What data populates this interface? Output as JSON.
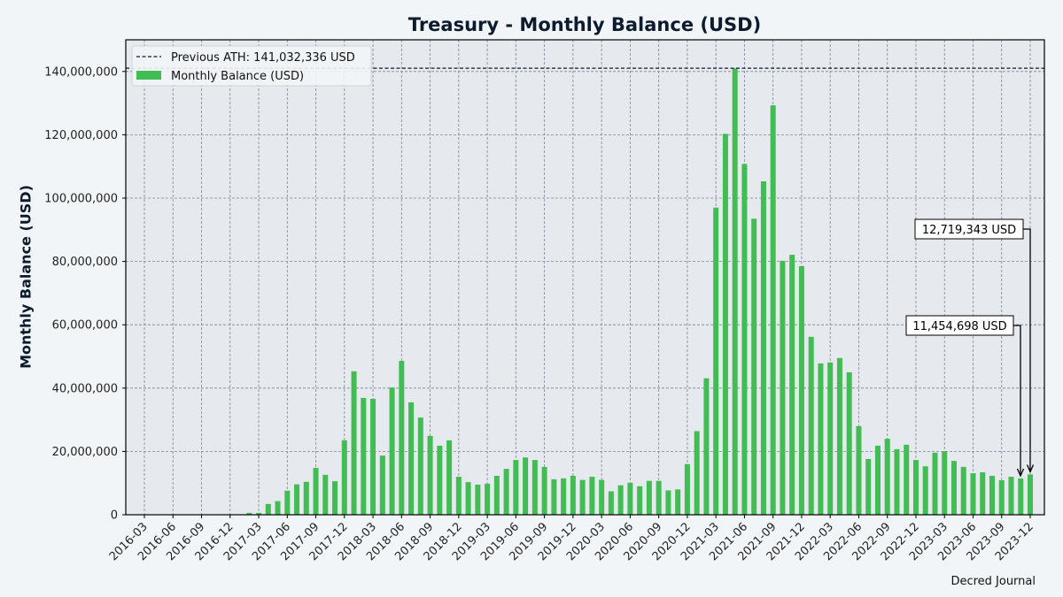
{
  "title": "Treasury - Monthly Balance (USD)",
  "footer": "Decred Journal",
  "legend": {
    "ath_label": "Previous ATH: 141,032,336 USD",
    "bar_label": "Monthly Balance (USD)"
  },
  "annotations": [
    {
      "label": "12,719,343 USD",
      "month": "2023-12",
      "value": 12719343
    },
    {
      "label": "11,454,698 USD",
      "month": "2023-11",
      "value": 11454698
    }
  ],
  "colors": {
    "bar": "#42bd53",
    "ath_line": "#0d1b2e",
    "plot_bg": "#e6e9ed",
    "page_bg": "#f2f5f7",
    "grid": "#7a8594",
    "text": "#0d1b2e"
  },
  "chart_data": {
    "type": "bar",
    "title": "Treasury - Monthly Balance (USD)",
    "xlabel": "",
    "ylabel": "Monthly Balance (USD)",
    "ylim": [
      0,
      150000000
    ],
    "yticks": [
      0,
      20000000,
      40000000,
      60000000,
      80000000,
      100000000,
      120000000,
      140000000
    ],
    "ytick_labels": [
      "0",
      "20,000,000",
      "40,000,000",
      "60,000,000",
      "80,000,000",
      "100,000,000",
      "120,000,000",
      "140,000,000"
    ],
    "xtick_labels": [
      "2016-03",
      "2016-06",
      "2016-09",
      "2016-12",
      "2017-03",
      "2017-06",
      "2017-09",
      "2017-12",
      "2018-03",
      "2018-06",
      "2018-09",
      "2018-12",
      "2019-03",
      "2019-06",
      "2019-09",
      "2019-12",
      "2020-03",
      "2020-06",
      "2020-09",
      "2020-12",
      "2021-03",
      "2021-06",
      "2021-09",
      "2021-12",
      "2022-03",
      "2022-06",
      "2022-09",
      "2022-12",
      "2023-03",
      "2023-06",
      "2023-09",
      "2023-12"
    ],
    "grid": true,
    "legend_position": "upper left",
    "reference_line": {
      "label": "Previous ATH: 141,032,336 USD",
      "value": 141032336,
      "style": "dashed"
    },
    "categories": [
      "2016-03",
      "2016-04",
      "2016-05",
      "2016-06",
      "2016-07",
      "2016-08",
      "2016-09",
      "2016-10",
      "2016-11",
      "2016-12",
      "2017-01",
      "2017-02",
      "2017-03",
      "2017-04",
      "2017-05",
      "2017-06",
      "2017-07",
      "2017-08",
      "2017-09",
      "2017-10",
      "2017-11",
      "2017-12",
      "2018-01",
      "2018-02",
      "2018-03",
      "2018-04",
      "2018-05",
      "2018-06",
      "2018-07",
      "2018-08",
      "2018-09",
      "2018-10",
      "2018-11",
      "2018-12",
      "2019-01",
      "2019-02",
      "2019-03",
      "2019-04",
      "2019-05",
      "2019-06",
      "2019-07",
      "2019-08",
      "2019-09",
      "2019-10",
      "2019-11",
      "2019-12",
      "2020-01",
      "2020-02",
      "2020-03",
      "2020-04",
      "2020-05",
      "2020-06",
      "2020-07",
      "2020-08",
      "2020-09",
      "2020-10",
      "2020-11",
      "2020-12",
      "2021-01",
      "2021-02",
      "2021-03",
      "2021-04",
      "2021-05",
      "2021-06",
      "2021-07",
      "2021-08",
      "2021-09",
      "2021-10",
      "2021-11",
      "2021-12",
      "2022-01",
      "2022-02",
      "2022-03",
      "2022-04",
      "2022-05",
      "2022-06",
      "2022-07",
      "2022-08",
      "2022-09",
      "2022-10",
      "2022-11",
      "2022-12",
      "2023-01",
      "2023-02",
      "2023-03",
      "2023-04",
      "2023-05",
      "2023-06",
      "2023-07",
      "2023-08",
      "2023-09",
      "2023-10",
      "2023-11",
      "2023-12"
    ],
    "series": [
      {
        "name": "Monthly Balance (USD)",
        "values": [
          0,
          0,
          0,
          0,
          0,
          0,
          0,
          0,
          0,
          0,
          0,
          600000,
          600000,
          3400000,
          4300000,
          7600000,
          9600000,
          10400000,
          14800000,
          12600000,
          10600000,
          23500000,
          45300000,
          36900000,
          36600000,
          18700000,
          40200000,
          48600000,
          35500000,
          30700000,
          24900000,
          21800000,
          23500000,
          12000000,
          10300000,
          9500000,
          9800000,
          12300000,
          14500000,
          17300000,
          18100000,
          17300000,
          15100000,
          11200000,
          11500000,
          12300000,
          11000000,
          12000000,
          11000000,
          7400000,
          9300000,
          10100000,
          9000000,
          10700000,
          10700000,
          7700000,
          8000000,
          16000000,
          26400000,
          43100000,
          97000000,
          120300000,
          141032336,
          110800000,
          93500000,
          105300000,
          129300000,
          80200000,
          82100000,
          78500000,
          56200000,
          47800000,
          48100000,
          49500000,
          45000000,
          28000000,
          17600000,
          21800000,
          24000000,
          20700000,
          22100000,
          17300000,
          15300000,
          19600000,
          20100000,
          17000000,
          15100000,
          13100000,
          13400000,
          12300000,
          10900000,
          12000000,
          11454698,
          12719343
        ]
      }
    ]
  }
}
